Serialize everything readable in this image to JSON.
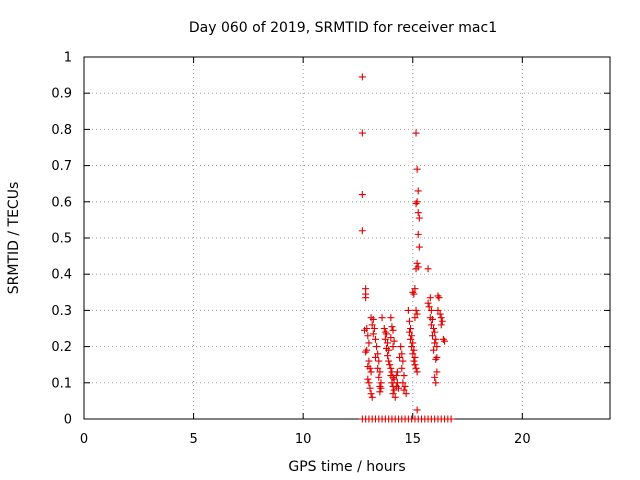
{
  "chart_data": {
    "type": "scatter",
    "title": "Day 060 of 2019, SRMTID for receiver mac1",
    "xlabel": "GPS time / hours",
    "ylabel": "SRMTID / TECUs",
    "xlim": [
      0,
      24
    ],
    "ylim": [
      0,
      1
    ],
    "xticks": [
      "0",
      "5",
      "10",
      "15",
      "20"
    ],
    "yticks": [
      "0",
      "0.1",
      "0.2",
      "0.3",
      "0.4",
      "0.5",
      "0.6",
      "0.7",
      "0.8",
      "0.9",
      "1"
    ],
    "grid": true,
    "marker": "+",
    "marker_color": "#e00000",
    "series": [
      {
        "points": [
          [
            12.7,
            0.945
          ],
          [
            12.7,
            0.79
          ],
          [
            12.7,
            0.62
          ],
          [
            12.7,
            0.52
          ],
          [
            12.85,
            0.36
          ],
          [
            12.85,
            0.345
          ],
          [
            12.85,
            0.335
          ],
          [
            12.8,
            0.245
          ],
          [
            12.9,
            0.25
          ],
          [
            12.95,
            0.23
          ],
          [
            13.0,
            0.21
          ],
          [
            12.9,
            0.19
          ],
          [
            12.85,
            0.185
          ],
          [
            13.0,
            0.16
          ],
          [
            12.95,
            0.145
          ],
          [
            13.05,
            0.14
          ],
          [
            13.1,
            0.13
          ],
          [
            12.95,
            0.11
          ],
          [
            13.0,
            0.1
          ],
          [
            13.05,
            0.085
          ],
          [
            13.1,
            0.07
          ],
          [
            13.15,
            0.06
          ],
          [
            13.1,
            0.28
          ],
          [
            13.2,
            0.275
          ],
          [
            13.15,
            0.26
          ],
          [
            13.25,
            0.25
          ],
          [
            13.2,
            0.235
          ],
          [
            13.3,
            0.22
          ],
          [
            13.35,
            0.2
          ],
          [
            13.4,
            0.18
          ],
          [
            13.3,
            0.17
          ],
          [
            13.45,
            0.16
          ],
          [
            13.4,
            0.14
          ],
          [
            13.5,
            0.13
          ],
          [
            13.45,
            0.115
          ],
          [
            13.55,
            0.1
          ],
          [
            13.5,
            0.09
          ],
          [
            13.55,
            0.085
          ],
          [
            13.5,
            0.075
          ],
          [
            13.6,
            0.28
          ],
          [
            13.7,
            0.25
          ],
          [
            13.75,
            0.24
          ],
          [
            13.8,
            0.235
          ],
          [
            13.75,
            0.22
          ],
          [
            13.85,
            0.21
          ],
          [
            13.8,
            0.195
          ],
          [
            13.9,
            0.19
          ],
          [
            13.85,
            0.175
          ],
          [
            13.9,
            0.16
          ],
          [
            13.95,
            0.15
          ],
          [
            14.0,
            0.14
          ],
          [
            14.05,
            0.13
          ],
          [
            14.0,
            0.12
          ],
          [
            14.1,
            0.115
          ],
          [
            14.05,
            0.1
          ],
          [
            14.1,
            0.09
          ],
          [
            14.15,
            0.08
          ],
          [
            14.1,
            0.07
          ],
          [
            14.2,
            0.06
          ],
          [
            14.15,
            0.11
          ],
          [
            14.25,
            0.12
          ],
          [
            14.3,
            0.1
          ],
          [
            14.25,
            0.09
          ],
          [
            14.35,
            0.085
          ],
          [
            14.3,
            0.13
          ],
          [
            14.0,
            0.28
          ],
          [
            14.05,
            0.255
          ],
          [
            14.1,
            0.245
          ],
          [
            14.0,
            0.225
          ],
          [
            14.15,
            0.215
          ],
          [
            14.1,
            0.2
          ],
          [
            14.45,
            0.2
          ],
          [
            14.5,
            0.18
          ],
          [
            14.4,
            0.17
          ],
          [
            14.55,
            0.16
          ],
          [
            14.5,
            0.14
          ],
          [
            14.6,
            0.12
          ],
          [
            14.55,
            0.1
          ],
          [
            14.65,
            0.09
          ],
          [
            14.6,
            0.08
          ],
          [
            14.7,
            0.07
          ],
          [
            14.8,
            0.3
          ],
          [
            14.85,
            0.27
          ],
          [
            14.9,
            0.25
          ],
          [
            14.85,
            0.24
          ],
          [
            14.95,
            0.23
          ],
          [
            14.9,
            0.22
          ],
          [
            15.0,
            0.21
          ],
          [
            14.95,
            0.2
          ],
          [
            15.05,
            0.19
          ],
          [
            15.0,
            0.18
          ],
          [
            15.1,
            0.17
          ],
          [
            15.05,
            0.16
          ],
          [
            15.1,
            0.15
          ],
          [
            15.15,
            0.14
          ],
          [
            15.2,
            0.13
          ],
          [
            15.0,
            0.35
          ],
          [
            15.05,
            0.345
          ],
          [
            15.1,
            0.36
          ],
          [
            15.15,
            0.3
          ],
          [
            15.2,
            0.29
          ],
          [
            15.1,
            0.28
          ],
          [
            15.15,
            0.79
          ],
          [
            15.2,
            0.69
          ],
          [
            15.25,
            0.63
          ],
          [
            15.2,
            0.6
          ],
          [
            15.15,
            0.595
          ],
          [
            15.25,
            0.57
          ],
          [
            15.3,
            0.555
          ],
          [
            15.25,
            0.51
          ],
          [
            15.3,
            0.475
          ],
          [
            15.2,
            0.43
          ],
          [
            15.25,
            0.42
          ],
          [
            15.15,
            0.415
          ],
          [
            15.2,
            0.025
          ],
          [
            15.7,
            0.415
          ],
          [
            15.8,
            0.335
          ],
          [
            15.7,
            0.32
          ],
          [
            15.75,
            0.31
          ],
          [
            15.85,
            0.3
          ],
          [
            15.8,
            0.28
          ],
          [
            15.9,
            0.275
          ],
          [
            15.85,
            0.26
          ],
          [
            15.95,
            0.25
          ],
          [
            16.0,
            0.24
          ],
          [
            15.9,
            0.23
          ],
          [
            16.05,
            0.22
          ],
          [
            16.0,
            0.21
          ],
          [
            16.1,
            0.2
          ],
          [
            15.95,
            0.19
          ],
          [
            16.1,
            0.17
          ],
          [
            16.05,
            0.165
          ],
          [
            16.15,
            0.34
          ],
          [
            16.2,
            0.335
          ],
          [
            16.15,
            0.3
          ],
          [
            16.25,
            0.29
          ],
          [
            16.3,
            0.28
          ],
          [
            16.35,
            0.27
          ],
          [
            16.3,
            0.26
          ],
          [
            16.4,
            0.22
          ],
          [
            16.45,
            0.215
          ],
          [
            16.1,
            0.13
          ],
          [
            16.0,
            0.115
          ],
          [
            16.05,
            0.1
          ],
          [
            12.7,
            0
          ],
          [
            12.85,
            0
          ],
          [
            13.0,
            0
          ],
          [
            13.15,
            0
          ],
          [
            13.3,
            0
          ],
          [
            13.45,
            0
          ],
          [
            13.6,
            0
          ],
          [
            13.75,
            0
          ],
          [
            13.9,
            0
          ],
          [
            14.05,
            0
          ],
          [
            14.2,
            0
          ],
          [
            14.35,
            0
          ],
          [
            14.5,
            0
          ],
          [
            14.65,
            0
          ],
          [
            14.8,
            0
          ],
          [
            14.95,
            0
          ],
          [
            15.1,
            0
          ],
          [
            15.25,
            0
          ],
          [
            15.4,
            0
          ],
          [
            15.55,
            0
          ],
          [
            15.7,
            0
          ],
          [
            15.85,
            0
          ],
          [
            16.0,
            0
          ],
          [
            16.15,
            0
          ],
          [
            16.3,
            0
          ],
          [
            16.45,
            0
          ],
          [
            16.6,
            0
          ],
          [
            16.75,
            0
          ]
        ]
      }
    ]
  }
}
